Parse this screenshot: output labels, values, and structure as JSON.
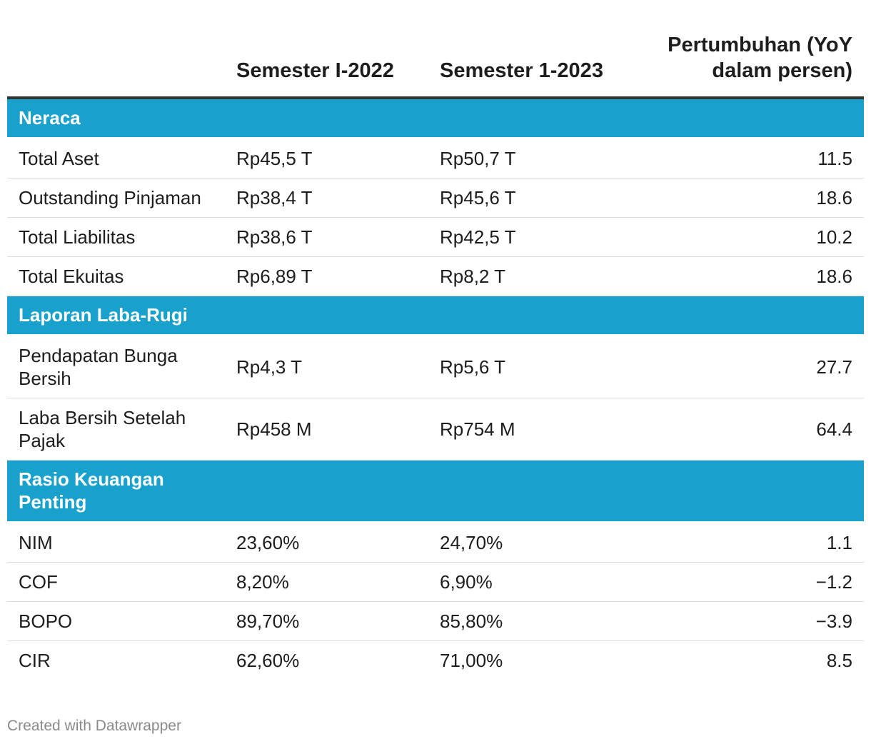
{
  "chart_data": {
    "type": "table",
    "columns": [
      "",
      "Semester I-2022",
      "Semester 1-2023",
      "Pertumbuhan (YoY dalam persen)"
    ],
    "sections": [
      {
        "title": "Neraca",
        "rows": [
          {
            "label": "Total Aset",
            "v2022": "Rp45,5 T",
            "v2023": "Rp50,7 T",
            "growth": "11.5"
          },
          {
            "label": "Outstanding Pinjaman",
            "v2022": "Rp38,4 T",
            "v2023": "Rp45,6 T",
            "growth": "18.6"
          },
          {
            "label": "Total Liabilitas",
            "v2022": "Rp38,6 T",
            "v2023": "Rp42,5 T",
            "growth": "10.2"
          },
          {
            "label": "Total Ekuitas",
            "v2022": "Rp6,89 T",
            "v2023": "Rp8,2 T",
            "growth": "18.6"
          }
        ]
      },
      {
        "title": "Laporan Laba-Rugi",
        "rows": [
          {
            "label": "Pendapatan Bunga Bersih",
            "v2022": "Rp4,3 T",
            "v2023": "Rp5,6 T",
            "growth": "27.7"
          },
          {
            "label": "Laba Bersih Setelah Pajak",
            "v2022": "Rp458 M",
            "v2023": "Rp754 M",
            "growth": "64.4"
          }
        ]
      },
      {
        "title": "Rasio Keuangan Penting",
        "rows": [
          {
            "label": "NIM",
            "v2022": "23,60%",
            "v2023": "24,70%",
            "growth": "1.1"
          },
          {
            "label": "COF",
            "v2022": "8,20%",
            "v2023": "6,90%",
            "growth": "−1.2"
          },
          {
            "label": "BOPO",
            "v2022": "89,70%",
            "v2023": "85,80%",
            "growth": "−3.9"
          },
          {
            "label": "CIR",
            "v2022": "62,60%",
            "v2023": "71,00%",
            "growth": "8.5"
          }
        ]
      }
    ],
    "section_color": "#18a1cd"
  },
  "footer": "Created with Datawrapper"
}
